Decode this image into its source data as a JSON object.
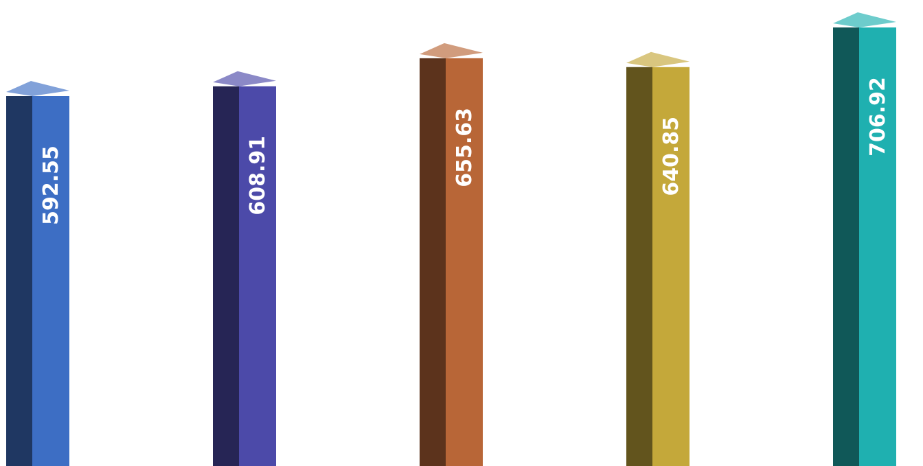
{
  "chart_data": {
    "type": "bar",
    "orientation": "vertical",
    "style": "3d",
    "values": [
      592.55,
      608.91,
      655.63,
      640.85,
      706.92
    ],
    "labels": [
      "592.55",
      "608.91",
      "655.63",
      "640.85",
      "706.92"
    ],
    "colors": [
      "#3d6ec4",
      "#4c4aa9",
      "#b86637",
      "#c4a83a",
      "#1fb0b0"
    ],
    "grid": false,
    "legend": "none"
  }
}
